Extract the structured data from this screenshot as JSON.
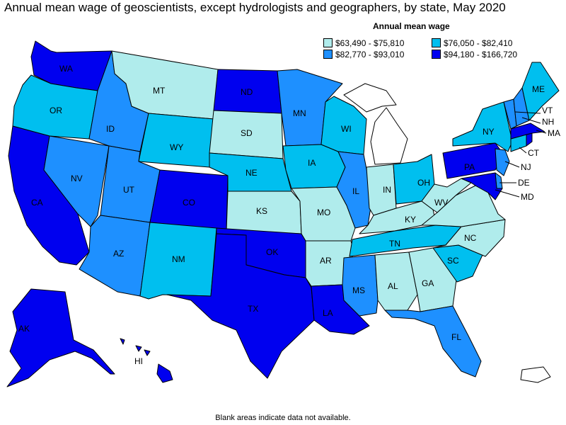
{
  "title": "Annual mean wage of geoscientists, except hydrologists and geographers, by state, May 2020",
  "legend": {
    "title": "Annual mean wage",
    "items": [
      {
        "label": "$63,490 - $75,810",
        "color": "#b0ecec"
      },
      {
        "label": "$76,050 - $82,410",
        "color": "#00bfef"
      },
      {
        "label": "$82,770 - $93,010",
        "color": "#1e90ff"
      },
      {
        "label": "$94,180 - $166,720",
        "color": "#0000ef"
      }
    ]
  },
  "footnote": "Blank areas indicate data not available.",
  "chart_data": {
    "type": "choropleth",
    "title": "Annual mean wage of geoscientists, except hydrologists and geographers, by state, May 2020",
    "legend_title": "Annual mean wage",
    "bins": [
      "$63,490 - $75,810",
      "$76,050 - $82,410",
      "$82,770 - $93,010",
      "$94,180 - $166,720"
    ],
    "states": {
      "WA": 3,
      "OR": 1,
      "CA": 3,
      "NV": 2,
      "ID": 2,
      "MT": 0,
      "WY": 1,
      "UT": 2,
      "AZ": 2,
      "CO": 3,
      "NM": 1,
      "ND": 3,
      "SD": 0,
      "NE": 1,
      "KS": 0,
      "OK": 3,
      "TX": 3,
      "MN": 2,
      "IA": 1,
      "MO": 0,
      "AR": 0,
      "LA": 3,
      "WI": 1,
      "IL": 2,
      "IN": 0,
      "MI": null,
      "OH": 1,
      "KY": 0,
      "TN": 1,
      "MS": 2,
      "AL": 0,
      "GA": 0,
      "FL": 2,
      "SC": 1,
      "NC": 0,
      "VA": 0,
      "WV": 0,
      "PA": 3,
      "NY": 1,
      "VT": 2,
      "NH": 2,
      "ME": 1,
      "MA": 3,
      "CT": 1,
      "RI": 3,
      "NJ": 2,
      "DE": 2,
      "MD": 3,
      "DC": null,
      "AK": 3,
      "HI": 3,
      "PR": null
    }
  }
}
